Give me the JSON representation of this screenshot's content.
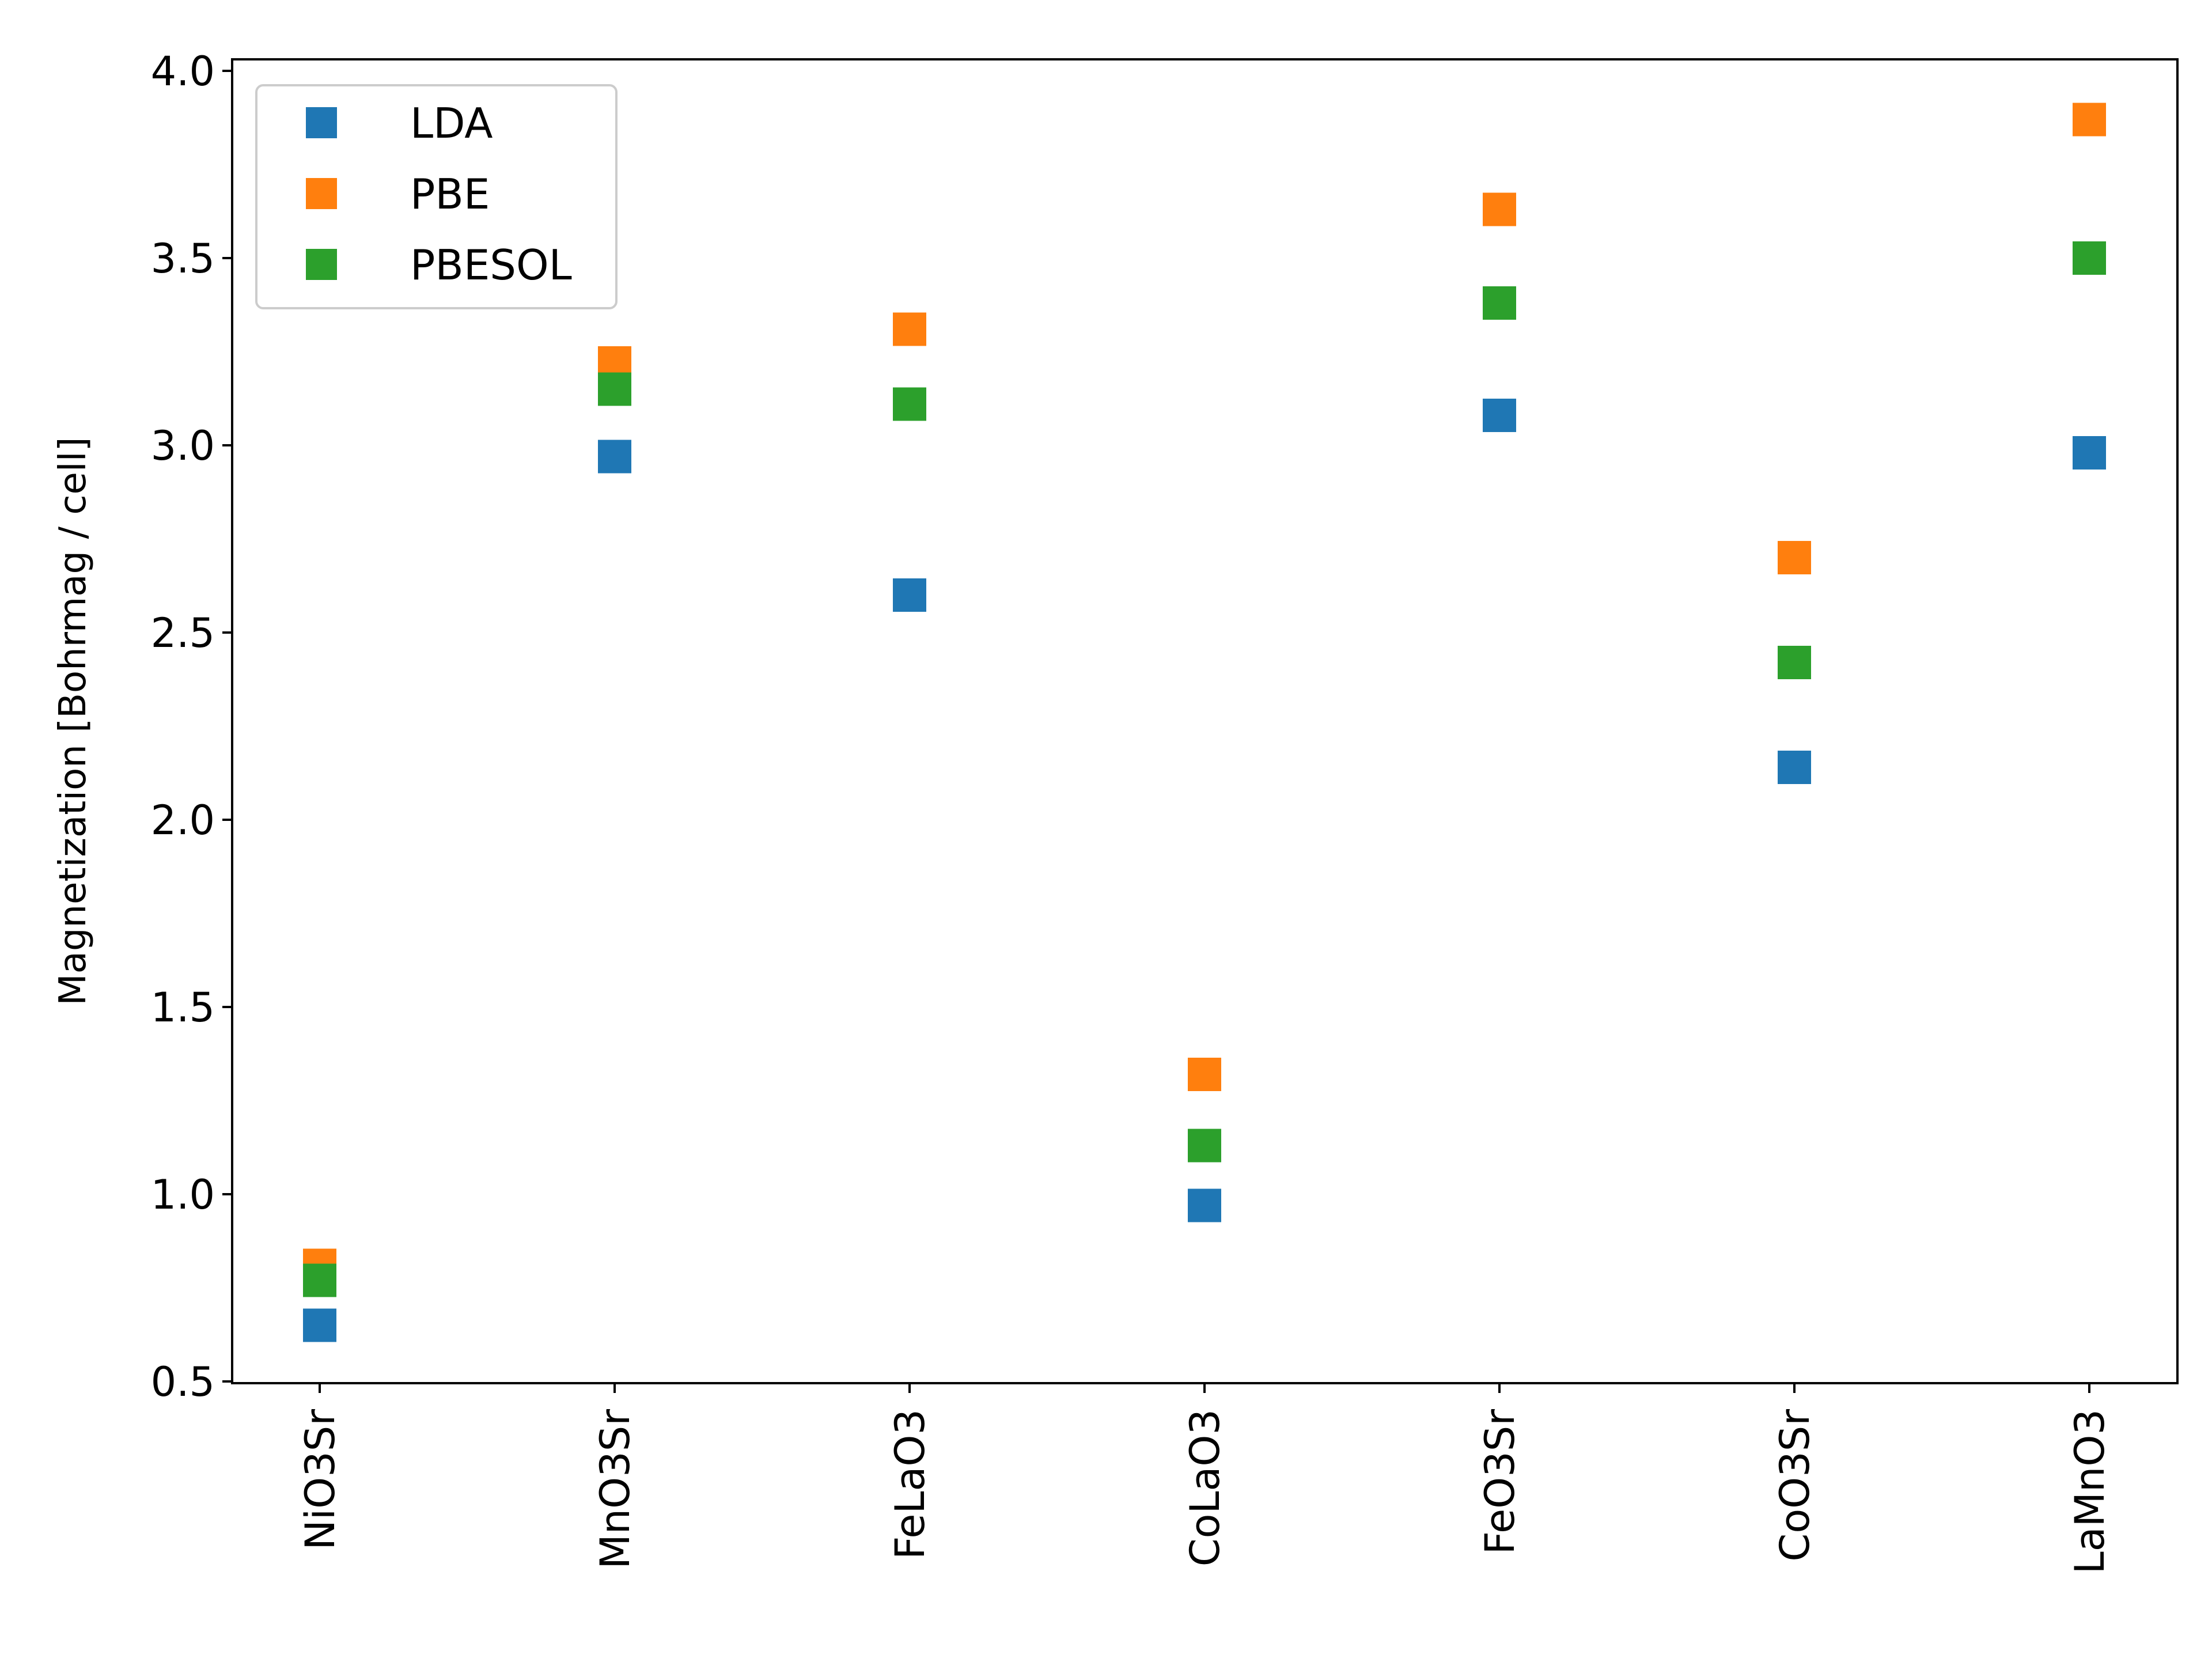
{
  "chart_data": {
    "type": "scatter",
    "title": "",
    "xlabel": "",
    "ylabel": "Magnetization [Bohrmag / cell]",
    "categories": [
      "NiO3Sr",
      "MnO3Sr",
      "FeLaO3",
      "CoLaO3",
      "FeO3Sr",
      "CoO3Sr",
      "LaMnO3"
    ],
    "ylim": [
      0.5,
      4.0
    ],
    "yticks": [
      "0.5",
      "1.0",
      "1.5",
      "2.0",
      "2.5",
      "3.0",
      "3.5",
      "4.0"
    ],
    "marker": "square",
    "grid": false,
    "legend_position": "top-left",
    "series": [
      {
        "name": "LDA",
        "color": "#1f77b4",
        "values": [
          0.65,
          2.97,
          2.6,
          0.97,
          3.08,
          2.14,
          2.98
        ]
      },
      {
        "name": "PBE",
        "color": "#ff7f0e",
        "values": [
          0.81,
          3.22,
          3.31,
          1.32,
          3.63,
          2.7,
          3.87
        ]
      },
      {
        "name": "PBESOL",
        "color": "#2ca02c",
        "values": [
          0.77,
          3.15,
          3.11,
          1.13,
          3.38,
          2.42,
          3.5
        ]
      }
    ]
  }
}
